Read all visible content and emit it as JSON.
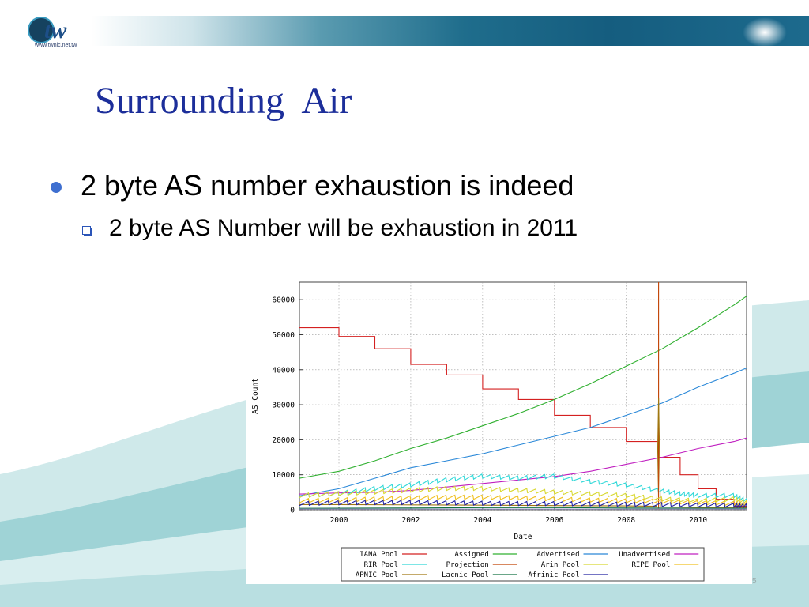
{
  "logo": {
    "text": "tw",
    "url": "www.twnic.net.tw"
  },
  "slide": {
    "title": "Surrounding  Air",
    "bullet1": "2 byte AS number exhaustion is indeed",
    "bullet2": "2 byte AS Number will be exhaustion in 2011",
    "page_number": "5"
  },
  "chart_data": {
    "type": "line",
    "xlabel": "Date",
    "ylabel": "AS Count",
    "xlim": [
      1998.9,
      2011.35
    ],
    "ylim": [
      0,
      65000
    ],
    "xticks": [
      2000,
      2002,
      2004,
      2006,
      2008,
      2010
    ],
    "yticks": [
      0,
      10000,
      20000,
      30000,
      40000,
      50000,
      60000
    ],
    "grid": true,
    "legend_position": "bottom",
    "series": [
      {
        "name": "IANA Pool",
        "color": "#d42020",
        "step": true,
        "x": [
          1998.9,
          2000,
          2001,
          2002,
          2003,
          2004,
          2005,
          2006,
          2007,
          2008,
          2008.9,
          2009.5,
          2010,
          2010.5,
          2011,
          2011.35
        ],
        "y": [
          52000,
          49500,
          46000,
          41500,
          38500,
          34500,
          31500,
          27000,
          23500,
          19500,
          15000,
          10000,
          6000,
          3000,
          1000,
          500
        ]
      },
      {
        "name": "Assigned",
        "color": "#30b030",
        "x": [
          1998.9,
          2000,
          2001,
          2002,
          2003,
          2004,
          2005,
          2006,
          2007,
          2008,
          2009,
          2010,
          2011,
          2011.35
        ],
        "y": [
          9000,
          11000,
          14000,
          17500,
          20500,
          24000,
          27500,
          31500,
          36000,
          41000,
          46000,
          52000,
          58500,
          61000
        ]
      },
      {
        "name": "Advertised",
        "color": "#2a88d8",
        "x": [
          1998.9,
          2000,
          2001,
          2002,
          2003,
          2004,
          2005,
          2006,
          2007,
          2008,
          2009,
          2010,
          2011,
          2011.35
        ],
        "y": [
          4000,
          6000,
          9000,
          12000,
          14000,
          16000,
          18500,
          21000,
          23500,
          27000,
          30500,
          35000,
          39000,
          40500
        ]
      },
      {
        "name": "Unadvertised",
        "color": "#c020c0",
        "x": [
          1998.9,
          2000,
          2001,
          2002,
          2003,
          2004,
          2005,
          2006,
          2007,
          2008,
          2009,
          2010,
          2011,
          2011.35
        ],
        "y": [
          4500,
          4800,
          5000,
          5500,
          6500,
          7500,
          8500,
          9500,
          11000,
          13000,
          15000,
          17500,
          19500,
          20500
        ]
      },
      {
        "name": "RIR Pool",
        "color": "#30d8d8",
        "sawtooth": true,
        "x": [
          1998.9,
          2000,
          2001,
          2002,
          2003,
          2004,
          2005,
          2006,
          2007,
          2008,
          2008.9,
          2009.5,
          2010,
          2011,
          2011.35
        ],
        "y": [
          3500,
          4000,
          5500,
          6500,
          8000,
          9000,
          8500,
          9000,
          7500,
          6500,
          5000,
          4000,
          3500,
          3500,
          2000
        ]
      },
      {
        "name": "Projection",
        "color": "#c04000",
        "x": [
          2008.9,
          2008.9,
          2008.9
        ],
        "y": [
          0,
          65000,
          0
        ]
      },
      {
        "name": "Arin Pool",
        "color": "#d8d830",
        "sawtooth": true,
        "x": [
          1998.9,
          2000,
          2001,
          2002,
          2003,
          2004,
          2005,
          2006,
          2007,
          2008,
          2009,
          2010,
          2011,
          2011.35
        ],
        "y": [
          3500,
          4000,
          4500,
          5000,
          5500,
          5500,
          5000,
          4500,
          4000,
          3500,
          2500,
          2000,
          2500,
          1500
        ]
      },
      {
        "name": "RIPE Pool",
        "color": "#f0c020",
        "sawtooth": true,
        "x": [
          1998.9,
          2000,
          2001,
          2002,
          2003,
          2004,
          2005,
          2006,
          2007,
          2008,
          2009,
          2010,
          2011,
          2011.35
        ],
        "y": [
          2000,
          2200,
          2500,
          2800,
          3000,
          3000,
          2800,
          2500,
          2200,
          2000,
          1800,
          1500,
          1200,
          1000
        ]
      },
      {
        "name": "APNIC Pool",
        "color": "#a07810",
        "spike": [
          2008.9,
          32000
        ],
        "x": [
          1998.9,
          2000,
          2002,
          2004,
          2006,
          2008,
          2008.85,
          2008.9,
          2008.95,
          2010,
          2011.35
        ],
        "y": [
          1500,
          1500,
          1400,
          1300,
          1200,
          1100,
          1000,
          32000,
          800,
          700,
          600
        ]
      },
      {
        "name": "Lacnic Pool",
        "color": "#107040",
        "x": [
          1998.9,
          2000,
          2002,
          2004,
          2006,
          2008,
          2010,
          2011.35
        ],
        "y": [
          400,
          450,
          500,
          600,
          600,
          500,
          450,
          400
        ]
      },
      {
        "name": "Afrinic Pool",
        "color": "#2020a0",
        "sawtooth": true,
        "x": [
          1998.9,
          2000,
          2001,
          2002,
          2003,
          2004,
          2005,
          2006,
          2007,
          2008,
          2009,
          2010,
          2011,
          2011.35
        ],
        "y": [
          1200,
          1400,
          1500,
          1500,
          1400,
          1300,
          1200,
          1200,
          1100,
          1000,
          900,
          800,
          700,
          600
        ]
      },
      {
        "name": "",
        "color": "#a0a0d0",
        "x": [
          1998.9,
          2011.35
        ],
        "y": [
          200,
          200
        ]
      }
    ]
  }
}
